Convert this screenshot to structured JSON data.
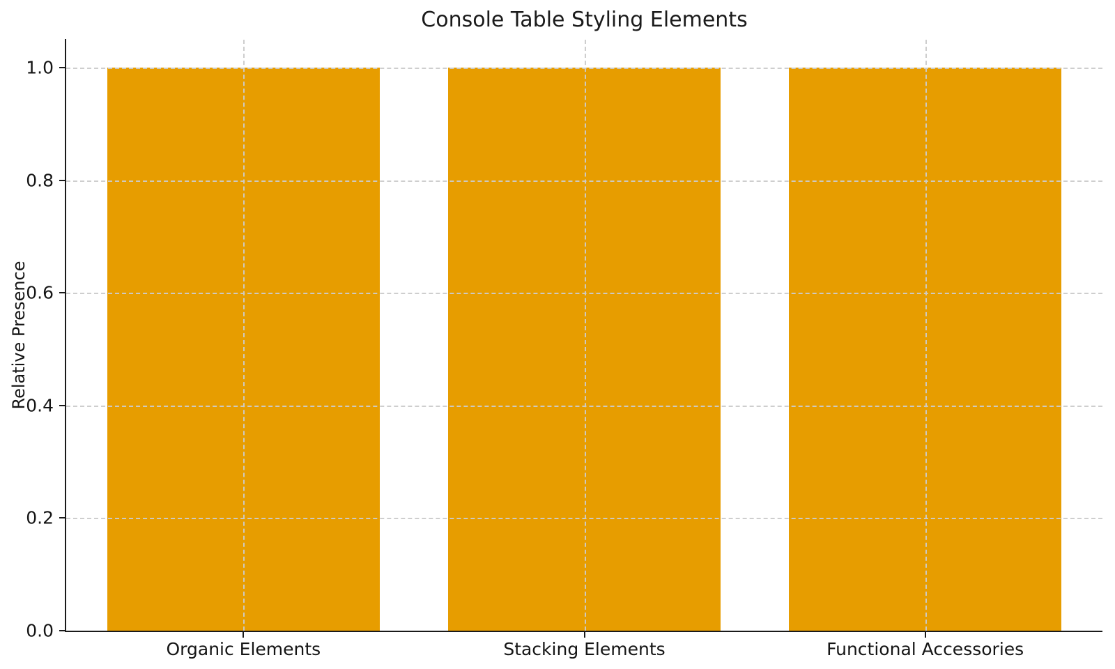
{
  "chart_data": {
    "type": "bar",
    "title": "Console Table Styling Elements",
    "categories": [
      "Organic Elements",
      "Stacking Elements",
      "Functional Accessories"
    ],
    "values": [
      1.0,
      1.0,
      1.0
    ],
    "xlabel": "",
    "ylabel": "Relative Presence",
    "ylim": [
      0,
      1.05
    ],
    "yticks": [
      0.0,
      0.2,
      0.4,
      0.6,
      0.8,
      1.0
    ],
    "ytick_labels": [
      "0.0",
      "0.2",
      "0.4",
      "0.6",
      "0.8",
      "1.0"
    ],
    "bar_color": "#E79D00",
    "grid": "dashed, horizontal and vertical, drawn above bars",
    "grid_color": "#cbcbcb",
    "axis_color": "#1a1a1a",
    "text_color": "#151515",
    "legend_position": "none"
  }
}
